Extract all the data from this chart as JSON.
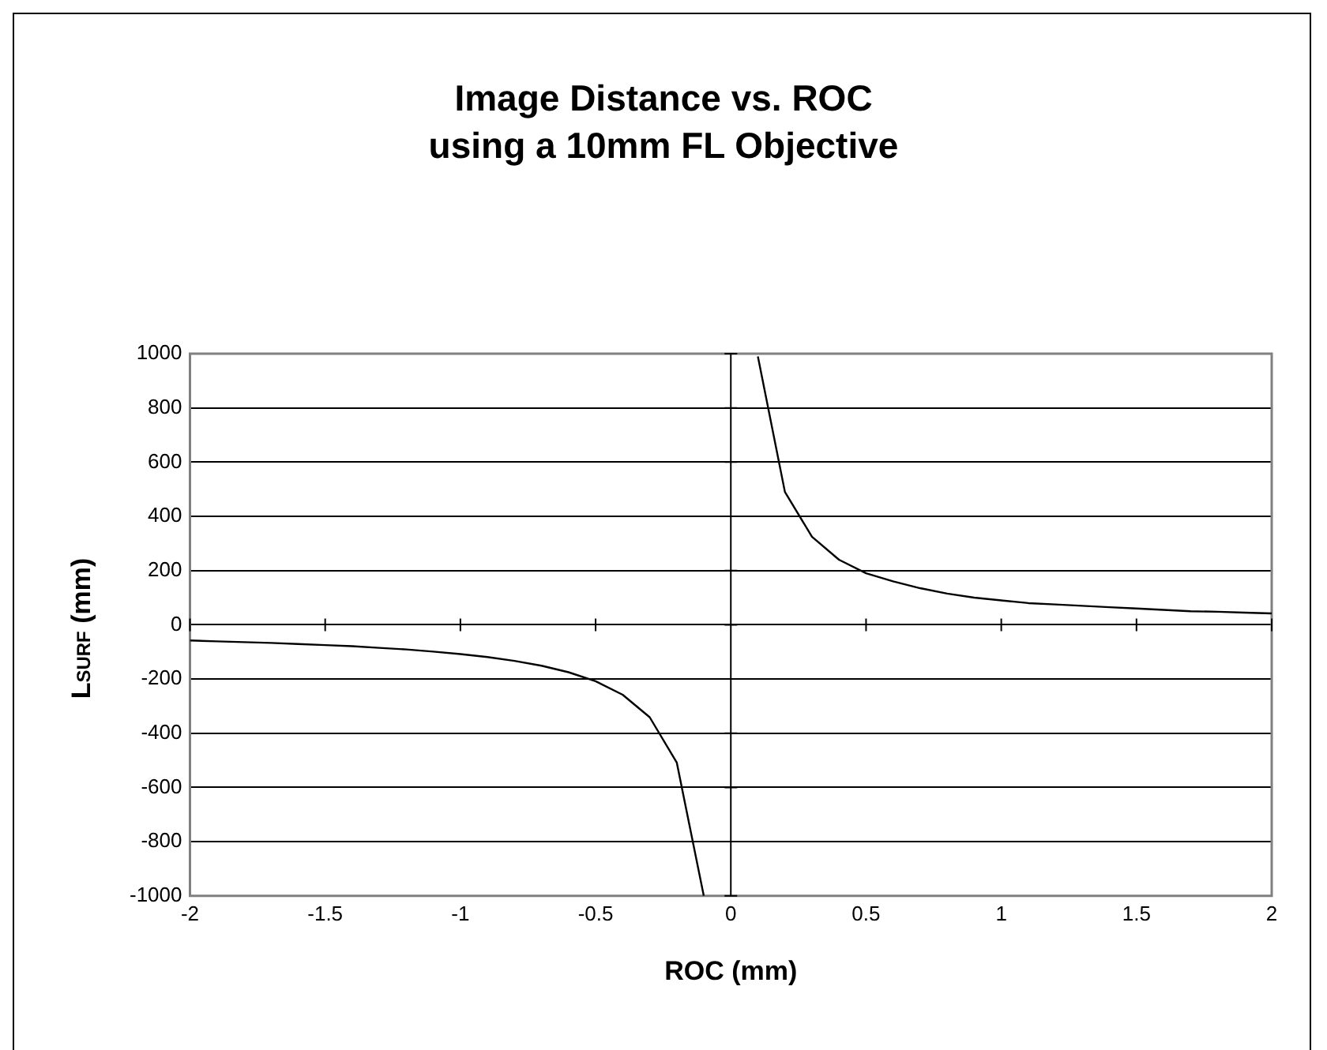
{
  "chart_data": {
    "type": "line",
    "title": "Image Distance vs. ROC\nusing a 10mm FL Objective",
    "xlabel": "ROC (mm)",
    "ylabel": "L$_{SURF}$ (mm)",
    "series": [
      {
        "color": "#000000",
        "x": [
          -2,
          -1.9,
          -1.8,
          -1.7,
          -1.6,
          -1.5,
          -1.4,
          -1.3,
          -1.2,
          -1.1,
          -1,
          -0.9,
          -0.8,
          -0.7,
          -0.6,
          -0.5,
          -0.4,
          -0.3,
          -0.2,
          -0.1
        ],
        "values": [
          -58,
          -61,
          -64,
          -67,
          -71,
          -75,
          -79,
          -85,
          -91,
          -99,
          -108,
          -119,
          -133,
          -151,
          -175,
          -208,
          -258,
          -341,
          -508,
          -1000
        ]
      },
      {
        "color": "#000000",
        "x": [
          0.1,
          0.2,
          0.3,
          0.4,
          0.5,
          0.6,
          0.7,
          0.8,
          0.9,
          1,
          1.1,
          1.2,
          1.3,
          1.4,
          1.5,
          1.6,
          1.7,
          1.8,
          1.9,
          2
        ],
        "values": [
          990,
          490,
          325,
          240,
          190,
          160,
          135,
          115,
          100,
          90,
          80,
          75,
          70,
          65,
          60,
          55,
          50,
          48,
          45,
          42
        ]
      }
    ],
    "xlim": [
      -2,
      2
    ],
    "xticks": [
      -2,
      -1.5,
      -1,
      -0.5,
      0,
      0.5,
      1,
      1.5,
      2
    ],
    "ylim": [
      -1000,
      1000
    ],
    "yticks": [
      -1000,
      -800,
      -600,
      -400,
      -200,
      0,
      200,
      400,
      600,
      800,
      1000
    ],
    "ref_lines": [
      {
        "axis": "x",
        "value": 0,
        "color": "#000000"
      }
    ],
    "grid": "y",
    "legend": false,
    "marker": "none",
    "line_style": "solid"
  }
}
